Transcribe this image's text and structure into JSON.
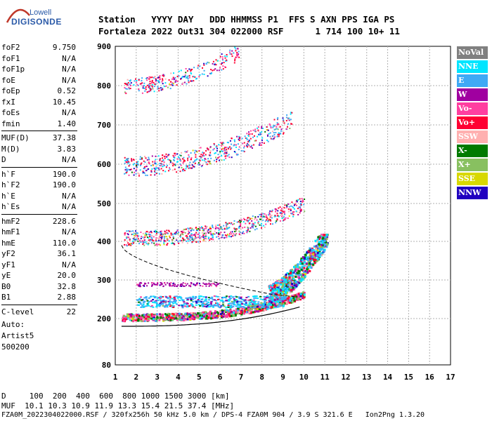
{
  "logo": {
    "line1": "Lowell",
    "line2": "DIGISONDE"
  },
  "header": {
    "row1": "Station   YYYY DAY   DDD HHMMSS P1  FFS S AXN PPS IGA PS",
    "row2": "Fortaleza 2022 Out31 304 022000 RSF      1 714 100 10+ 11"
  },
  "params": [
    {
      "label": "foF2",
      "value": "9.750"
    },
    {
      "label": "foF1",
      "value": "N/A"
    },
    {
      "label": "foF1p",
      "value": "N/A"
    },
    {
      "label": "foE",
      "value": "N/A"
    },
    {
      "label": "foEp",
      "value": "0.52"
    },
    {
      "label": "fxI",
      "value": "10.45"
    },
    {
      "label": "foEs",
      "value": "N/A"
    },
    {
      "label": "fmin",
      "value": "1.40"
    },
    {
      "label": "MUF(D)",
      "value": "37.38"
    },
    {
      "label": "M(D)",
      "value": "3.83"
    },
    {
      "label": "D",
      "value": "N/A"
    },
    {
      "label": "h`F",
      "value": "190.0"
    },
    {
      "label": "h`F2",
      "value": "190.0"
    },
    {
      "label": "h`E",
      "value": "N/A"
    },
    {
      "label": "h`Es",
      "value": "N/A"
    },
    {
      "label": "hmF2",
      "value": "228.6"
    },
    {
      "label": "hmF1",
      "value": "N/A"
    },
    {
      "label": "hmE",
      "value": "110.0"
    },
    {
      "label": "yF2",
      "value": "36.1"
    },
    {
      "label": "yF1",
      "value": "N/A"
    },
    {
      "label": "yE",
      "value": "20.0"
    },
    {
      "label": "B0",
      "value": "32.8"
    },
    {
      "label": "B1",
      "value": "2.88"
    },
    {
      "label": "C-level",
      "value": "22"
    }
  ],
  "auto": {
    "line1": "Auto:",
    "line2": "Artist5",
    "line3": "500200"
  },
  "legend": [
    {
      "label": "NoVal",
      "color": "#808080"
    },
    {
      "label": "NNE",
      "color": "#00e5ff"
    },
    {
      "label": "E",
      "color": "#3fa9f5"
    },
    {
      "label": "W",
      "color": "#a000a0"
    },
    {
      "label": "Vo-",
      "color": "#ff3fa0"
    },
    {
      "label": "Vo+",
      "color": "#ff0033"
    },
    {
      "label": "SSW",
      "color": "#ffb0b0"
    },
    {
      "label": "X-",
      "color": "#007a00"
    },
    {
      "label": "X+",
      "color": "#88c060"
    },
    {
      "label": "SSE",
      "color": "#d8d800"
    },
    {
      "label": "NNW",
      "color": "#2000c0"
    }
  ],
  "footer": {
    "d_line": "D     100  200  400  600  800 1000 1500 3000 [km]",
    "muf_line": "MUF  10.1 10.3 10.9 11.9 13.3 15.4 21.5 37.4 [MHz]",
    "file_line": "FZA0M_2022304022000.RSF / 320fx256h 50 kHz 5.0 km / DPS-4 FZA0M 904 / 3.9 S 321.6 E   Ion2Png 1.3.20"
  },
  "chart_data": {
    "type": "scatter",
    "x_ticks": [
      "1",
      "2",
      "3",
      "4",
      "5",
      "6",
      "7",
      "8",
      "9",
      "10",
      "11",
      "12",
      "13",
      "14",
      "15",
      "16",
      "17"
    ],
    "y_ticks": [
      "900",
      "800",
      "700",
      "600",
      "500",
      "400",
      "300",
      "200",
      "80"
    ],
    "xlim": [
      1,
      17
    ],
    "y_tick_values": [
      900,
      800,
      700,
      600,
      500,
      400,
      300,
      200,
      80
    ],
    "grid": true,
    "series": [
      {
        "name": "NoVal",
        "values": []
      },
      {
        "name": "NNE",
        "values": [
          [
            10.3,
            340
          ],
          [
            10.8,
            360
          ],
          [
            11.1,
            345
          ]
        ]
      },
      {
        "name": "E",
        "values": [
          [
            2.5,
            240
          ],
          [
            4,
            245
          ],
          [
            5.5,
            250
          ],
          [
            7,
            255
          ]
        ]
      },
      {
        "name": "W",
        "values": [
          [
            2.3,
            290
          ],
          [
            3.5,
            290
          ]
        ]
      },
      {
        "name": "Vo-",
        "values": [
          [
            1.5,
            215
          ],
          [
            4,
            215
          ],
          [
            7,
            225
          ],
          [
            9,
            245
          ],
          [
            10,
            300
          ]
        ]
      },
      {
        "name": "Vo+",
        "values": [
          [
            1.5,
            395
          ],
          [
            5,
            405
          ],
          [
            8,
            460
          ],
          [
            2,
            570
          ],
          [
            5,
            620
          ],
          [
            8,
            710
          ]
        ]
      },
      {
        "name": "SSW",
        "values": []
      },
      {
        "name": "X-",
        "values": [
          [
            3,
            205
          ],
          [
            6,
            210
          ],
          [
            9,
            240
          ]
        ]
      },
      {
        "name": "X+",
        "values": [
          [
            5,
            205
          ],
          [
            8,
            220
          ]
        ]
      },
      {
        "name": "SSE",
        "values": []
      },
      {
        "name": "NNW",
        "values": [
          [
            6.5,
            255
          ],
          [
            8.5,
            265
          ]
        ]
      }
    ]
  }
}
